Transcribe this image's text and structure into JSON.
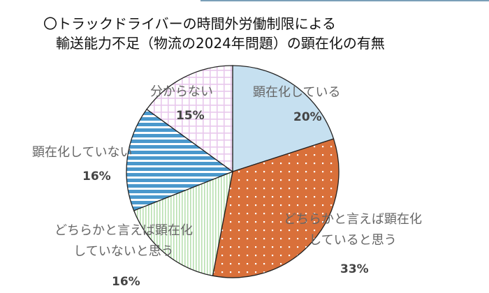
{
  "chart_data": {
    "type": "pie",
    "title_line1": "〇トラックドライバーの時間外労働制限による",
    "title_line2": "輸送能力不足（物流の2024年問題）の顕在化の有無",
    "slices": [
      {
        "label": "顕在化している",
        "value": 20,
        "pct_label": "20%",
        "color": "#c6e0f0",
        "pattern": "solid"
      },
      {
        "label_line1": "どちらかと言えば顕在化",
        "label_line2": "していると思う",
        "value": 33,
        "pct_label": "33%",
        "color": "#d9703a",
        "pattern": "dots"
      },
      {
        "label_line1": "どちらかと言えば顕在化",
        "label_line2": "していないと思う",
        "value": 16,
        "pct_label": "16%",
        "color": "#b8e0b0",
        "pattern": "vertical-lines"
      },
      {
        "label": "顕在化していない",
        "value": 16,
        "pct_label": "16%",
        "color": "#4a98cc",
        "pattern": "horizontal-stripes"
      },
      {
        "label": "分からない",
        "value": 15,
        "pct_label": "15%",
        "color": "#e8c8ec",
        "pattern": "grid"
      }
    ],
    "start": "top",
    "direction": "clockwise"
  }
}
